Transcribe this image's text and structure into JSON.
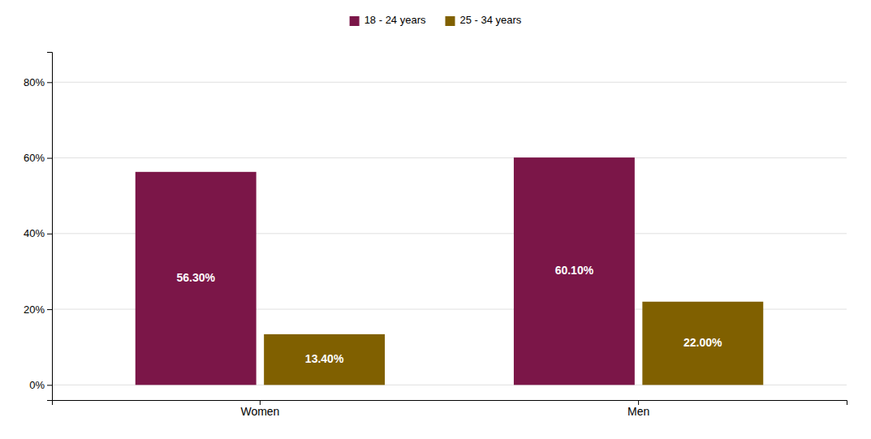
{
  "chart_data": {
    "type": "bar",
    "categories": [
      "Women",
      "Men"
    ],
    "series": [
      {
        "name": "18 - 24 years",
        "color": "#7B1648",
        "values": [
          56.3,
          60.1
        ],
        "value_labels": [
          "56.30%",
          "60.10%"
        ]
      },
      {
        "name": "25 - 34 years",
        "color": "#806000",
        "values": [
          13.4,
          22.0
        ],
        "value_labels": [
          "13.40%",
          "22.00%"
        ]
      }
    ],
    "ylim": [
      -4,
      88
    ],
    "yticks": [
      {
        "value": 0,
        "label": "0%"
      },
      {
        "value": 20,
        "label": "20%"
      },
      {
        "value": 40,
        "label": "40%"
      },
      {
        "value": 60,
        "label": "60%"
      },
      {
        "value": 80,
        "label": "80%"
      }
    ],
    "grid": true,
    "legend": "top",
    "data_labels": true
  }
}
